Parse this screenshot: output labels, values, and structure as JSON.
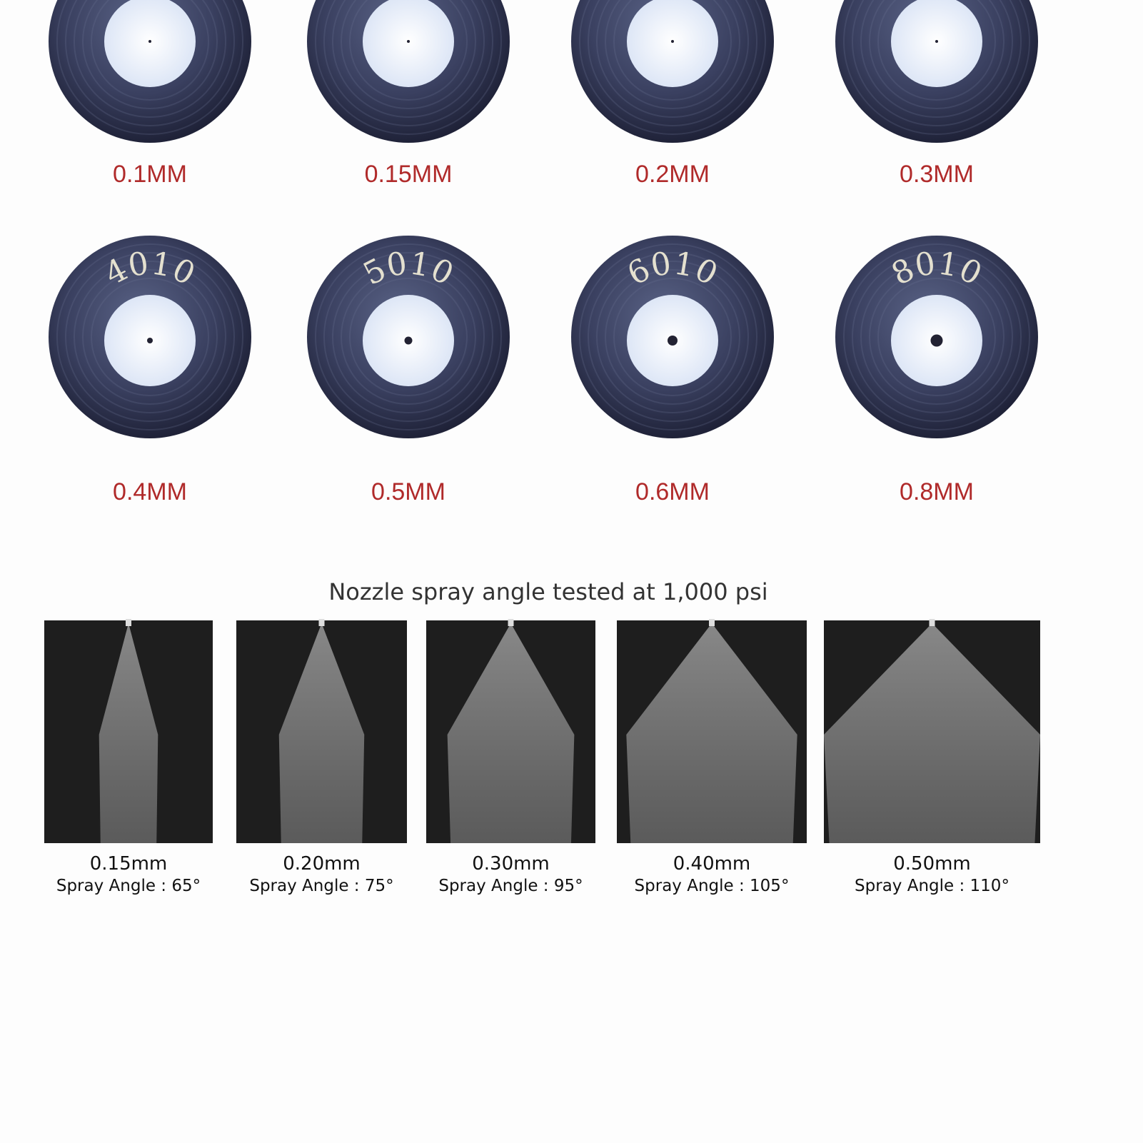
{
  "nozzles": [
    {
      "size": "0.1MM"
    },
    {
      "size": "0.15MM"
    },
    {
      "size": "0.2MM"
    },
    {
      "size": "0.3MM"
    },
    {
      "size": "0.4MM",
      "engraving": "4010"
    },
    {
      "size": "0.5MM",
      "engraving": "5010"
    },
    {
      "size": "0.6MM",
      "engraving": "6010"
    },
    {
      "size": "0.8MM",
      "engraving": "8010"
    }
  ],
  "spray_title": "Nozzle spray angle tested at 1,000 psi",
  "sprays": [
    {
      "size": "0.15mm",
      "angle": "Spray Angle : 65°"
    },
    {
      "size": "0.20mm",
      "angle": "Spray Angle : 75°"
    },
    {
      "size": "0.30mm",
      "angle": "Spray Angle : 95°"
    },
    {
      "size": "0.40mm",
      "angle": "Spray Angle : 105°"
    },
    {
      "size": "0.50mm",
      "angle": "Spray Angle : 110°"
    }
  ]
}
